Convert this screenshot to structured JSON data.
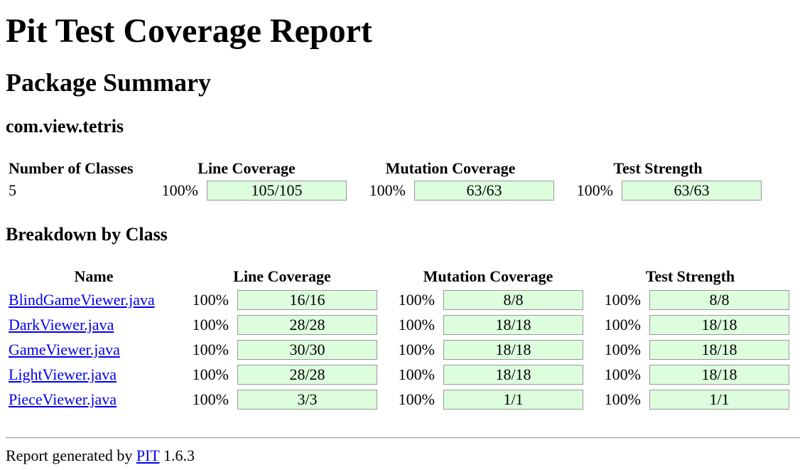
{
  "title": "Pit Test Coverage Report",
  "subtitle": "Package Summary",
  "package_name": "com.view.tetris",
  "summary": {
    "headers": [
      "Number of Classes",
      "Line Coverage",
      "Mutation Coverage",
      "Test Strength"
    ],
    "classes": "5",
    "line": {
      "pct": "100%",
      "value": "105/105"
    },
    "mutation": {
      "pct": "100%",
      "value": "63/63"
    },
    "strength": {
      "pct": "100%",
      "value": "63/63"
    }
  },
  "breakdown": {
    "heading": "Breakdown by Class",
    "headers": [
      "Name",
      "Line Coverage",
      "Mutation Coverage",
      "Test Strength"
    ],
    "rows": [
      {
        "name": "BlindGameViewer.java",
        "line_pct": "100%",
        "line": "16/16",
        "mut_pct": "100%",
        "mut": "8/8",
        "str_pct": "100%",
        "str": "8/8"
      },
      {
        "name": "DarkViewer.java",
        "line_pct": "100%",
        "line": "28/28",
        "mut_pct": "100%",
        "mut": "18/18",
        "str_pct": "100%",
        "str": "18/18"
      },
      {
        "name": "GameViewer.java",
        "line_pct": "100%",
        "line": "30/30",
        "mut_pct": "100%",
        "mut": "18/18",
        "str_pct": "100%",
        "str": "18/18"
      },
      {
        "name": "LightViewer.java",
        "line_pct": "100%",
        "line": "28/28",
        "mut_pct": "100%",
        "mut": "18/18",
        "str_pct": "100%",
        "str": "18/18"
      },
      {
        "name": "PieceViewer.java",
        "line_pct": "100%",
        "line": "3/3",
        "mut_pct": "100%",
        "mut": "1/1",
        "str_pct": "100%",
        "str": "1/1"
      }
    ]
  },
  "footer": {
    "prefix": "Report generated by",
    "link": "PIT",
    "version": "1.6.3"
  },
  "colors": {
    "bar_fill": "#ddfedd",
    "bar_border": "#999999",
    "link": "#0000ee"
  }
}
